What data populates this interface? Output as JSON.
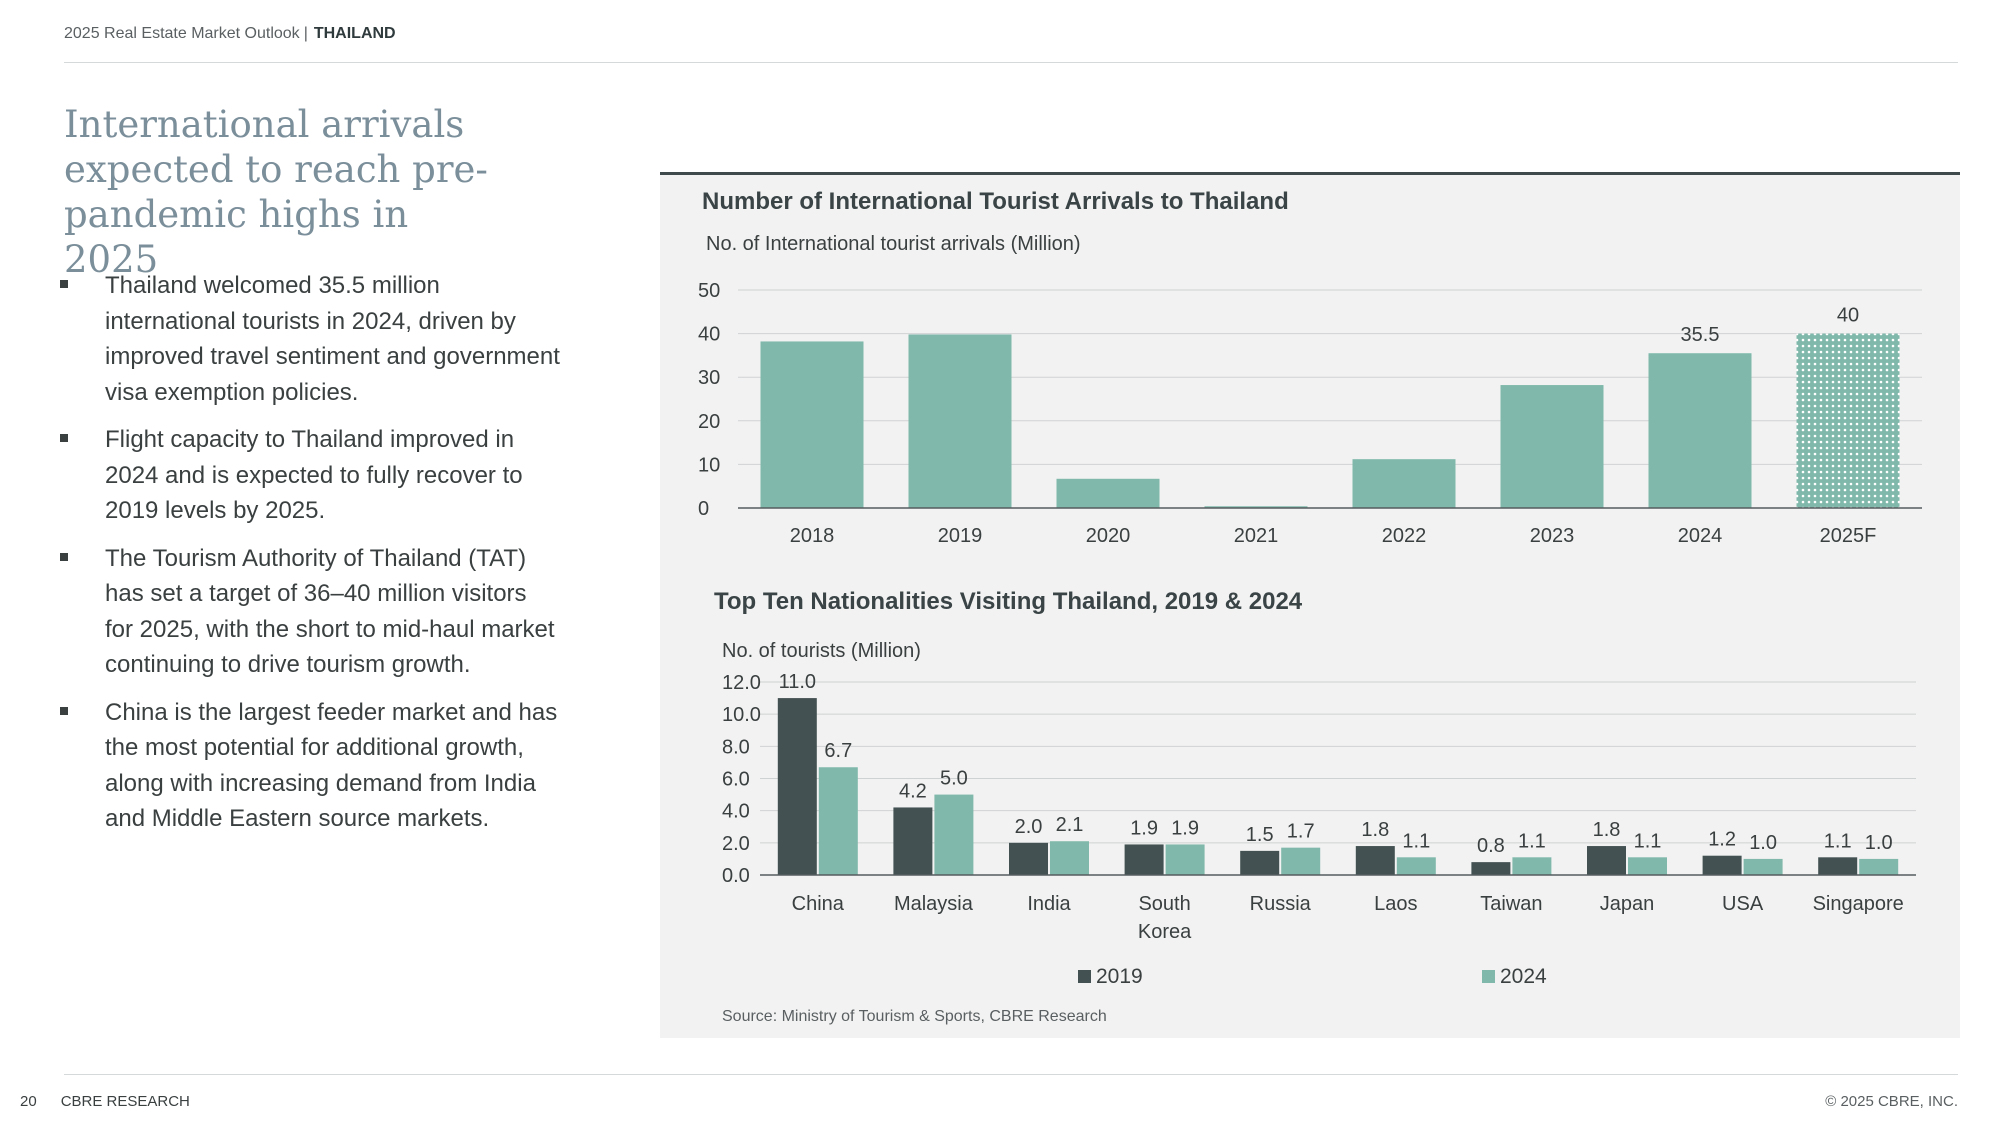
{
  "header": {
    "report": "2025 Real Estate Market Outlook",
    "separator": "|",
    "country": "THAILAND"
  },
  "headline": "International arrivals expected to reach pre-pandemic highs in 2025",
  "bullets": [
    "Thailand welcomed 35.5 million international tourists in 2024, driven by improved travel sentiment and government visa exemption policies.",
    "Flight capacity to Thailand improved in 2024 and is expected to fully recover to 2019 levels by 2025.",
    "The Tourism Authority of Thailand (TAT) has set a target of 36–40 million visitors for 2025, with the short to mid-haul market continuing to drive tourism growth.",
    "China is the largest feeder market and has the most potential for additional growth, along with increasing demand from India and Middle Eastern source markets."
  ],
  "footer": {
    "page_number": "20",
    "brand": "CBRE RESEARCH",
    "copyright": "© 2025 CBRE, INC."
  },
  "source": "Source: Ministry of Tourism & Sports, CBRE Research",
  "colors": {
    "teal": "#80b9ab",
    "dark": "#435152",
    "forecast_pattern": "#80b9ab"
  },
  "chart_data": [
    {
      "type": "bar",
      "title": "Number of International Tourist Arrivals to Thailand",
      "ylabel": "No. of International tourist arrivals (Million)",
      "categories": [
        "2018",
        "2019",
        "2020",
        "2021",
        "2022",
        "2023",
        "2024",
        "2025F"
      ],
      "values": [
        38.2,
        39.8,
        6.7,
        0.4,
        11.2,
        28.2,
        35.5,
        40
      ],
      "data_labels": [
        "",
        "",
        "",
        "",
        "",
        "",
        "35.5",
        "40"
      ],
      "forecast_index": 7,
      "ylim": [
        0,
        50
      ],
      "yticks": [
        "0",
        "10",
        "20",
        "30",
        "40",
        "50"
      ],
      "grid": true
    },
    {
      "type": "bar",
      "title": "Top Ten Nationalities Visiting Thailand, 2019 & 2024",
      "ylabel": "No. of tourists (Million)",
      "categories": [
        "China",
        "Malaysia",
        "India",
        "South Korea",
        "Russia",
        "Laos",
        "Taiwan",
        "Japan",
        "USA",
        "Singapore"
      ],
      "series": [
        {
          "name": "2019",
          "values": [
            11.0,
            4.2,
            2.0,
            1.9,
            1.5,
            1.8,
            0.8,
            1.8,
            1.2,
            1.1
          ],
          "labels": [
            "11.0",
            "4.2",
            "2.0",
            "1.9",
            "1.5",
            "1.8",
            "0.8",
            "1.8",
            "1.2",
            "1.1"
          ]
        },
        {
          "name": "2024",
          "values": [
            6.7,
            5.0,
            2.1,
            1.9,
            1.7,
            1.1,
            1.1,
            1.1,
            1.0,
            1.0
          ],
          "labels": [
            "6.7",
            "5.0",
            "2.1",
            "1.9",
            "1.7",
            "1.1",
            "1.1",
            "1.1",
            "1.0",
            "1.0"
          ]
        }
      ],
      "ylim": [
        0,
        12
      ],
      "yticks": [
        "0.0",
        "2.0",
        "4.0",
        "6.0",
        "8.0",
        "10.0",
        "12.0"
      ],
      "legend": "bottom",
      "grid": true
    }
  ]
}
